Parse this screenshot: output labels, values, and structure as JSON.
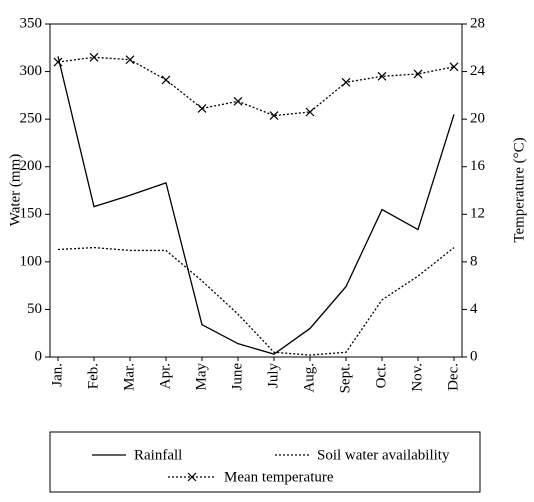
{
  "chart_data": {
    "type": "line",
    "categories": [
      "Jan.",
      "Feb.",
      "Mar.",
      "Apr.",
      "May",
      "June",
      "July",
      "Aug.",
      "Sept.",
      "Oct.",
      "Nov.",
      "Dec."
    ],
    "ylabel": "Water (mm)",
    "y2label": "Temperature (°C)",
    "ylim": [
      0,
      350
    ],
    "yticks": [
      0,
      50,
      100,
      150,
      200,
      250,
      300,
      350
    ],
    "y2lim": [
      0,
      28
    ],
    "y2ticks": [
      0,
      4,
      8,
      12,
      16,
      20,
      24,
      28
    ],
    "series": [
      {
        "name": "Rainfall",
        "color": "#000000",
        "style": "solid",
        "values": [
          316,
          158,
          170,
          183,
          34,
          14,
          3,
          30,
          74,
          155,
          134,
          255
        ]
      },
      {
        "name": "Soil water availability",
        "color": "#000000",
        "style": "dotted",
        "values": [
          113,
          115,
          112,
          112,
          80,
          45,
          5,
          2,
          5,
          60,
          85,
          115
        ]
      },
      {
        "name": "Mean temperature",
        "color": "#000000",
        "style": "dotted",
        "marker": "x",
        "axis": "y2",
        "values": [
          24.8,
          25.2,
          25.0,
          23.3,
          20.9,
          21.5,
          20.3,
          20.6,
          23.1,
          23.6,
          23.8,
          24.4
        ]
      }
    ]
  }
}
